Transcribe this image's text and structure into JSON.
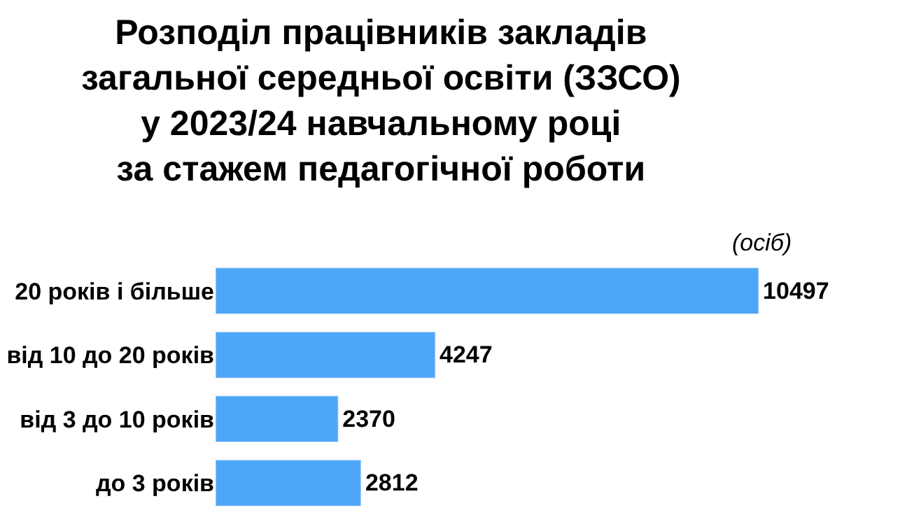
{
  "chart_data": {
    "type": "bar",
    "orientation": "horizontal",
    "title": "Розподіл працівників закладів\nзагальної середньої освіти (ЗЗСО)\nу 2023/24 навчальному році\nза стажем педагогічної роботи",
    "subtitle": "(осіб)",
    "categories": [
      "20 років і більше",
      "від 10 до 20 років",
      "від 3 до 10 років",
      "до 3 років"
    ],
    "values": [
      10497,
      4247,
      2370,
      2812
    ],
    "color": "#4da6f7",
    "data_labels": true
  }
}
